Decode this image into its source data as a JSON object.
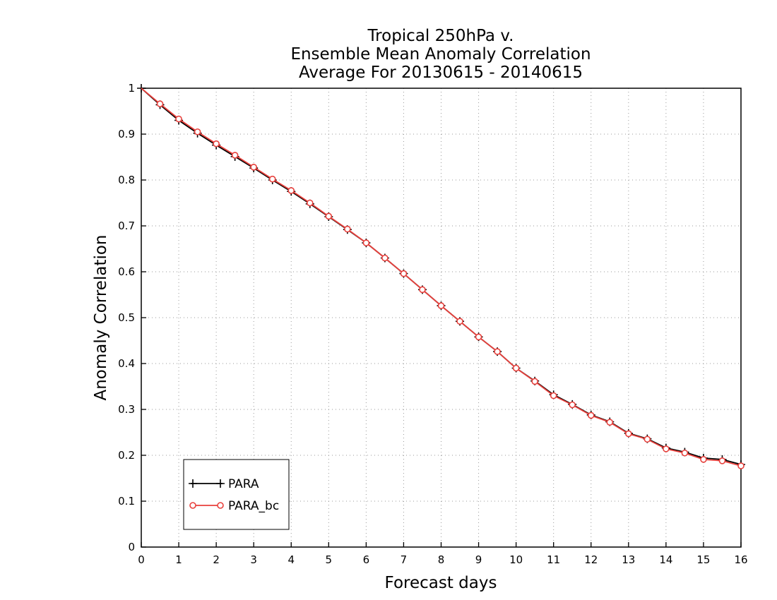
{
  "chart_data": {
    "type": "line",
    "title": [
      "Tropical 250hPa v.",
      "Ensemble Mean Anomaly Correlation",
      "Average For 20130615 - 20140615"
    ],
    "xlabel": "Forecast days",
    "ylabel": "Anomaly Correlation",
    "xlim": [
      0,
      16
    ],
    "ylim": [
      0,
      1
    ],
    "x_ticks": [
      "0",
      "1",
      "2",
      "3",
      "4",
      "5",
      "6",
      "7",
      "8",
      "9",
      "10",
      "11",
      "12",
      "13",
      "14",
      "15",
      "16"
    ],
    "y_ticks": [
      "0",
      "0.1",
      "0.2",
      "0.3",
      "0.4",
      "0.5",
      "0.6",
      "0.7",
      "0.8",
      "0.9",
      "1"
    ],
    "grid": true,
    "legend_position": "bottom-left",
    "x": [
      0,
      0.5,
      1,
      1.5,
      2,
      2.5,
      3,
      3.5,
      4,
      4.5,
      5,
      5.5,
      6,
      6.5,
      7,
      7.5,
      8,
      8.5,
      9,
      9.5,
      10,
      10.5,
      11,
      11.5,
      12,
      12.5,
      13,
      13.5,
      14,
      14.5,
      15,
      15.5,
      16
    ],
    "series": [
      {
        "name": "PARA",
        "color": "#000000",
        "marker": "plus",
        "values": [
          1.0,
          0.964,
          0.93,
          0.902,
          0.876,
          0.851,
          0.826,
          0.8,
          0.775,
          0.748,
          0.72,
          0.692,
          0.663,
          0.63,
          0.596,
          0.561,
          0.526,
          0.492,
          0.458,
          0.426,
          0.39,
          0.362,
          0.332,
          0.311,
          0.288,
          0.273,
          0.248,
          0.236,
          0.216,
          0.207,
          0.194,
          0.191,
          0.18
        ]
      },
      {
        "name": "PARA_bc",
        "color": "#e8403c",
        "marker": "circle",
        "values": [
          1.0,
          0.966,
          0.933,
          0.905,
          0.879,
          0.854,
          0.828,
          0.802,
          0.777,
          0.75,
          0.721,
          0.693,
          0.663,
          0.63,
          0.596,
          0.561,
          0.526,
          0.492,
          0.458,
          0.426,
          0.39,
          0.361,
          0.33,
          0.31,
          0.287,
          0.272,
          0.247,
          0.235,
          0.214,
          0.205,
          0.191,
          0.188,
          0.177
        ]
      }
    ]
  }
}
